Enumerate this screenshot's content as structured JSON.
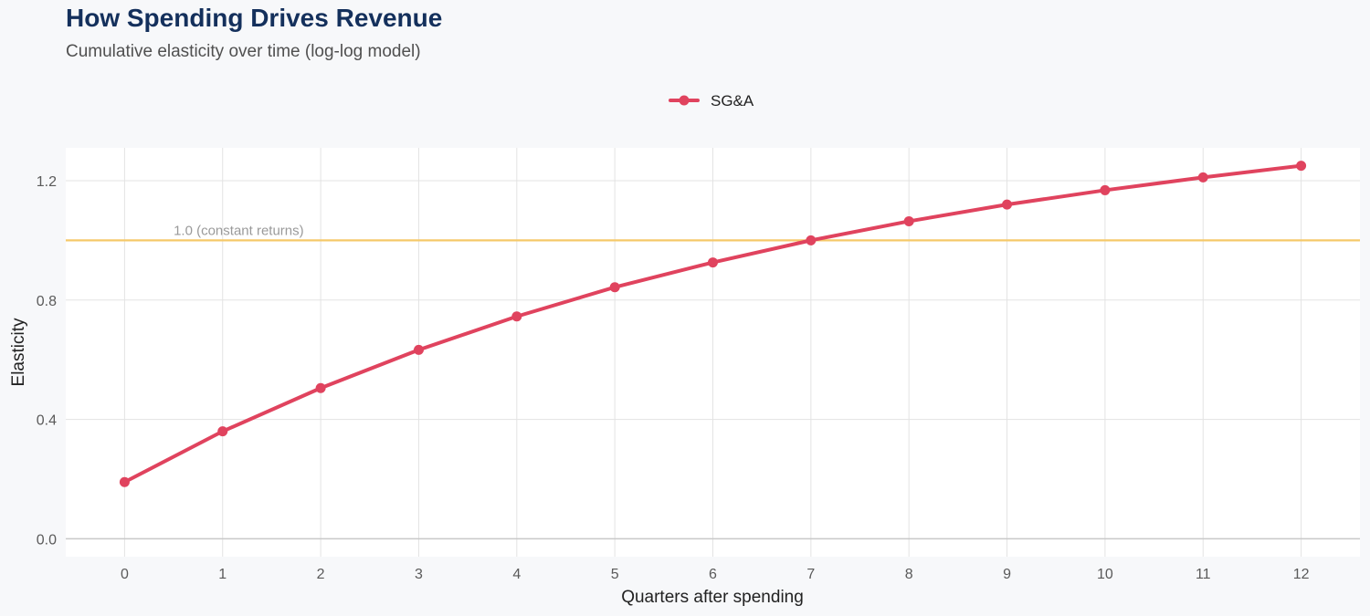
{
  "chart_data": {
    "type": "line",
    "title": "How Spending Drives Revenue",
    "subtitle": "Cumulative elasticity over time (log-log model)",
    "xlabel": "Quarters after spending",
    "ylabel": "Elasticity",
    "x": [
      0,
      1,
      2,
      3,
      4,
      5,
      6,
      7,
      8,
      9,
      10,
      11,
      12
    ],
    "x_ticks": [
      "0",
      "1",
      "2",
      "3",
      "4",
      "5",
      "6",
      "7",
      "8",
      "9",
      "10",
      "11",
      "12"
    ],
    "xlim": [
      -0.6,
      12.6
    ],
    "ylim": [
      -0.06,
      1.31
    ],
    "y_ticks": [
      "0.0",
      "0.4",
      "0.8",
      "1.2"
    ],
    "y_tick_values": [
      0,
      0.4,
      0.8,
      1.2
    ],
    "series": [
      {
        "name": "SG&A",
        "color": "#e0435e",
        "values": [
          0.19,
          0.36,
          0.505,
          0.633,
          0.745,
          0.843,
          0.926,
          1.0,
          1.064,
          1.12,
          1.168,
          1.211,
          1.25
        ]
      }
    ],
    "reference_line": {
      "y": 1.0,
      "label": "1.0 (constant returns)",
      "color": "#f5c96a"
    },
    "grid": true,
    "legend_position": "top"
  }
}
